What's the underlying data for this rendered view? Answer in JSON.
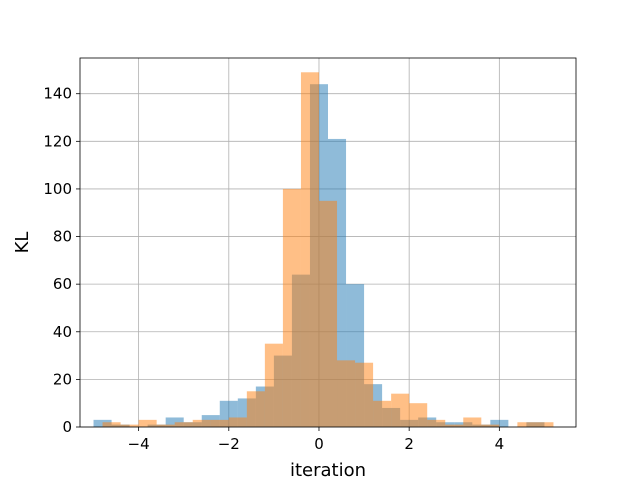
{
  "chart_data": {
    "type": "bar",
    "title": "",
    "xlabel": "iteration",
    "ylabel": "KL",
    "xlim": [
      -5.3,
      5.7
    ],
    "ylim": [
      0,
      155
    ],
    "xticks": [
      -4,
      -2,
      0,
      2,
      4
    ],
    "xtick_labels": [
      "−4",
      "−2",
      "0",
      "2",
      "4"
    ],
    "yticks": [
      0,
      20,
      40,
      60,
      80,
      100,
      120,
      140
    ],
    "ytick_labels": [
      "0",
      "20",
      "40",
      "60",
      "80",
      "100",
      "120",
      "140"
    ],
    "grid": true,
    "legend": "none",
    "series": [
      {
        "color": "#1f77b4",
        "opacity": 0.5,
        "bins": [
          {
            "x0": -5.0,
            "x1": -4.6,
            "count": 3
          },
          {
            "x0": -4.6,
            "x1": -4.2,
            "count": 1
          },
          {
            "x0": -4.2,
            "x1": -3.8,
            "count": 0
          },
          {
            "x0": -3.8,
            "x1": -3.4,
            "count": 1
          },
          {
            "x0": -3.4,
            "x1": -3.0,
            "count": 4
          },
          {
            "x0": -3.0,
            "x1": -2.6,
            "count": 2
          },
          {
            "x0": -2.6,
            "x1": -2.2,
            "count": 5
          },
          {
            "x0": -2.2,
            "x1": -1.8,
            "count": 11
          },
          {
            "x0": -1.8,
            "x1": -1.4,
            "count": 12
          },
          {
            "x0": -1.4,
            "x1": -1.0,
            "count": 17
          },
          {
            "x0": -1.0,
            "x1": -0.6,
            "count": 30
          },
          {
            "x0": -0.6,
            "x1": -0.2,
            "count": 64
          },
          {
            "x0": -0.2,
            "x1": 0.2,
            "count": 144
          },
          {
            "x0": 0.2,
            "x1": 0.6,
            "count": 121
          },
          {
            "x0": 0.6,
            "x1": 1.0,
            "count": 60
          },
          {
            "x0": 1.0,
            "x1": 1.4,
            "count": 18
          },
          {
            "x0": 1.4,
            "x1": 1.8,
            "count": 8
          },
          {
            "x0": 1.8,
            "x1": 2.2,
            "count": 3
          },
          {
            "x0": 2.2,
            "x1": 2.6,
            "count": 4
          },
          {
            "x0": 2.6,
            "x1": 3.0,
            "count": 2
          },
          {
            "x0": 3.0,
            "x1": 3.4,
            "count": 2
          },
          {
            "x0": 3.4,
            "x1": 3.8,
            "count": 1
          },
          {
            "x0": 3.8,
            "x1": 4.2,
            "count": 3
          },
          {
            "x0": 4.2,
            "x1": 4.6,
            "count": 0
          },
          {
            "x0": 4.6,
            "x1": 5.0,
            "count": 2
          }
        ]
      },
      {
        "color": "#ff7f0e",
        "opacity": 0.5,
        "bins": [
          {
            "x0": -4.8,
            "x1": -4.4,
            "count": 2
          },
          {
            "x0": -4.4,
            "x1": -4.0,
            "count": 1
          },
          {
            "x0": -4.0,
            "x1": -3.6,
            "count": 3
          },
          {
            "x0": -3.6,
            "x1": -3.2,
            "count": 1
          },
          {
            "x0": -3.2,
            "x1": -2.8,
            "count": 2
          },
          {
            "x0": -2.8,
            "x1": -2.4,
            "count": 3
          },
          {
            "x0": -2.4,
            "x1": -2.0,
            "count": 3
          },
          {
            "x0": -2.0,
            "x1": -1.6,
            "count": 4
          },
          {
            "x0": -1.6,
            "x1": -1.2,
            "count": 15
          },
          {
            "x0": -1.2,
            "x1": -0.8,
            "count": 35
          },
          {
            "x0": -0.8,
            "x1": -0.4,
            "count": 100
          },
          {
            "x0": -0.4,
            "x1": 0.0,
            "count": 149
          },
          {
            "x0": 0.0,
            "x1": 0.4,
            "count": 95
          },
          {
            "x0": 0.4,
            "x1": 0.8,
            "count": 28
          },
          {
            "x0": 0.8,
            "x1": 1.2,
            "count": 27
          },
          {
            "x0": 1.2,
            "x1": 1.6,
            "count": 11
          },
          {
            "x0": 1.6,
            "x1": 2.0,
            "count": 14
          },
          {
            "x0": 2.0,
            "x1": 2.4,
            "count": 10
          },
          {
            "x0": 2.4,
            "x1": 2.8,
            "count": 3
          },
          {
            "x0": 2.8,
            "x1": 3.2,
            "count": 1
          },
          {
            "x0": 3.2,
            "x1": 3.6,
            "count": 4
          },
          {
            "x0": 3.6,
            "x1": 4.0,
            "count": 1
          },
          {
            "x0": 4.0,
            "x1": 4.4,
            "count": 0
          },
          {
            "x0": 4.4,
            "x1": 4.8,
            "count": 2
          },
          {
            "x0": 4.8,
            "x1": 5.2,
            "count": 2
          }
        ]
      }
    ]
  }
}
